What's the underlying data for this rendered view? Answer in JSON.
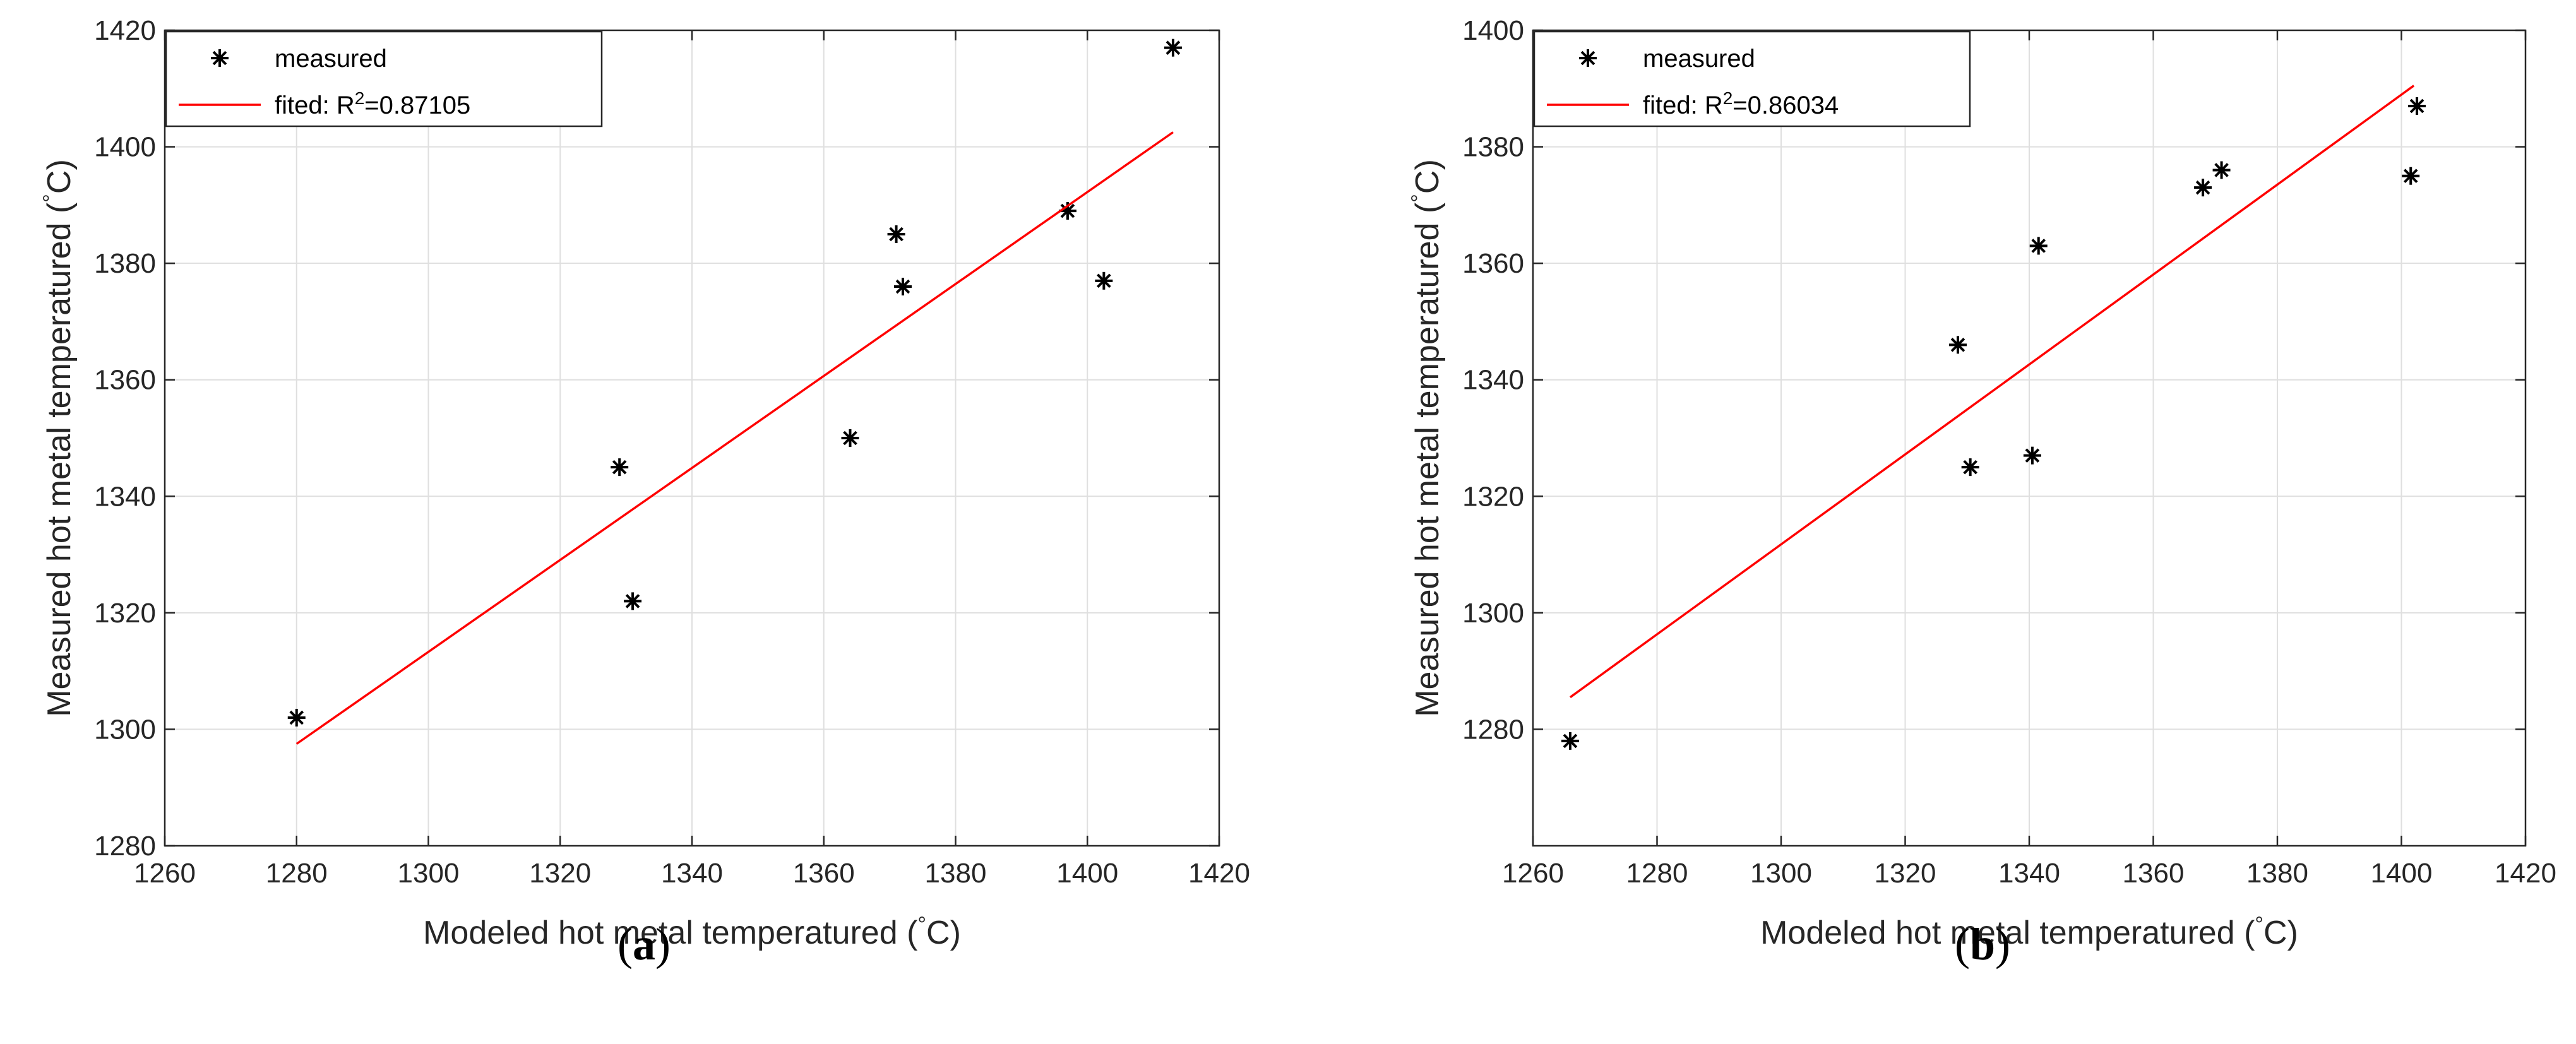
{
  "chart_data": [
    {
      "type": "scatter",
      "id": "a",
      "caption": "a",
      "xlabel": "Modeled hot metal temperatured (°C)",
      "ylabel": "Measured hot metal temperatured (°C)",
      "xlim": [
        1260,
        1420
      ],
      "ylim": [
        1280,
        1420
      ],
      "xticks": [
        1260,
        1280,
        1300,
        1320,
        1340,
        1360,
        1380,
        1400,
        1420
      ],
      "yticks": [
        1280,
        1300,
        1320,
        1340,
        1360,
        1380,
        1400,
        1420
      ],
      "grid": true,
      "legend_position": "top-left",
      "series": [
        {
          "name": "measured",
          "kind": "scatter",
          "color": "#000000",
          "x": [
            1280,
            1329,
            1331,
            1364,
            1371,
            1372,
            1397,
            1402.5,
            1413
          ],
          "y": [
            1302,
            1345,
            1322,
            1350,
            1385,
            1376,
            1389,
            1377,
            1417
          ]
        },
        {
          "name": "fited: R",
          "name_sup": "2",
          "name_suffix": "=0.87105",
          "kind": "line",
          "color": "#ff0000",
          "x": [
            1280,
            1413
          ],
          "y": [
            1297.5,
            1402.5
          ]
        }
      ]
    },
    {
      "type": "scatter",
      "id": "b",
      "caption": "b",
      "xlabel": "Modeled hot metal temperatured (°C)",
      "ylabel": "Measured hot metal temperatured (°C)",
      "xlim": [
        1260,
        1420
      ],
      "ylim": [
        1260,
        1400
      ],
      "xticks": [
        1260,
        1280,
        1300,
        1320,
        1340,
        1360,
        1380,
        1400,
        1420
      ],
      "yticks": [
        1280,
        1300,
        1320,
        1340,
        1360,
        1380,
        1400
      ],
      "grid": true,
      "legend_position": "top-left",
      "series": [
        {
          "name": "measured",
          "kind": "scatter",
          "color": "#000000",
          "x": [
            1266,
            1328.5,
            1330.5,
            1340.5,
            1341.5,
            1368,
            1371,
            1401.5,
            1402.5
          ],
          "y": [
            1278,
            1346,
            1325,
            1327,
            1363,
            1373,
            1376,
            1375,
            1387
          ]
        },
        {
          "name": "fited: R",
          "name_sup": "2",
          "name_suffix": "=0.86034",
          "kind": "line",
          "color": "#ff0000",
          "x": [
            1266,
            1402
          ],
          "y": [
            1285.5,
            1390.5
          ]
        }
      ]
    }
  ]
}
